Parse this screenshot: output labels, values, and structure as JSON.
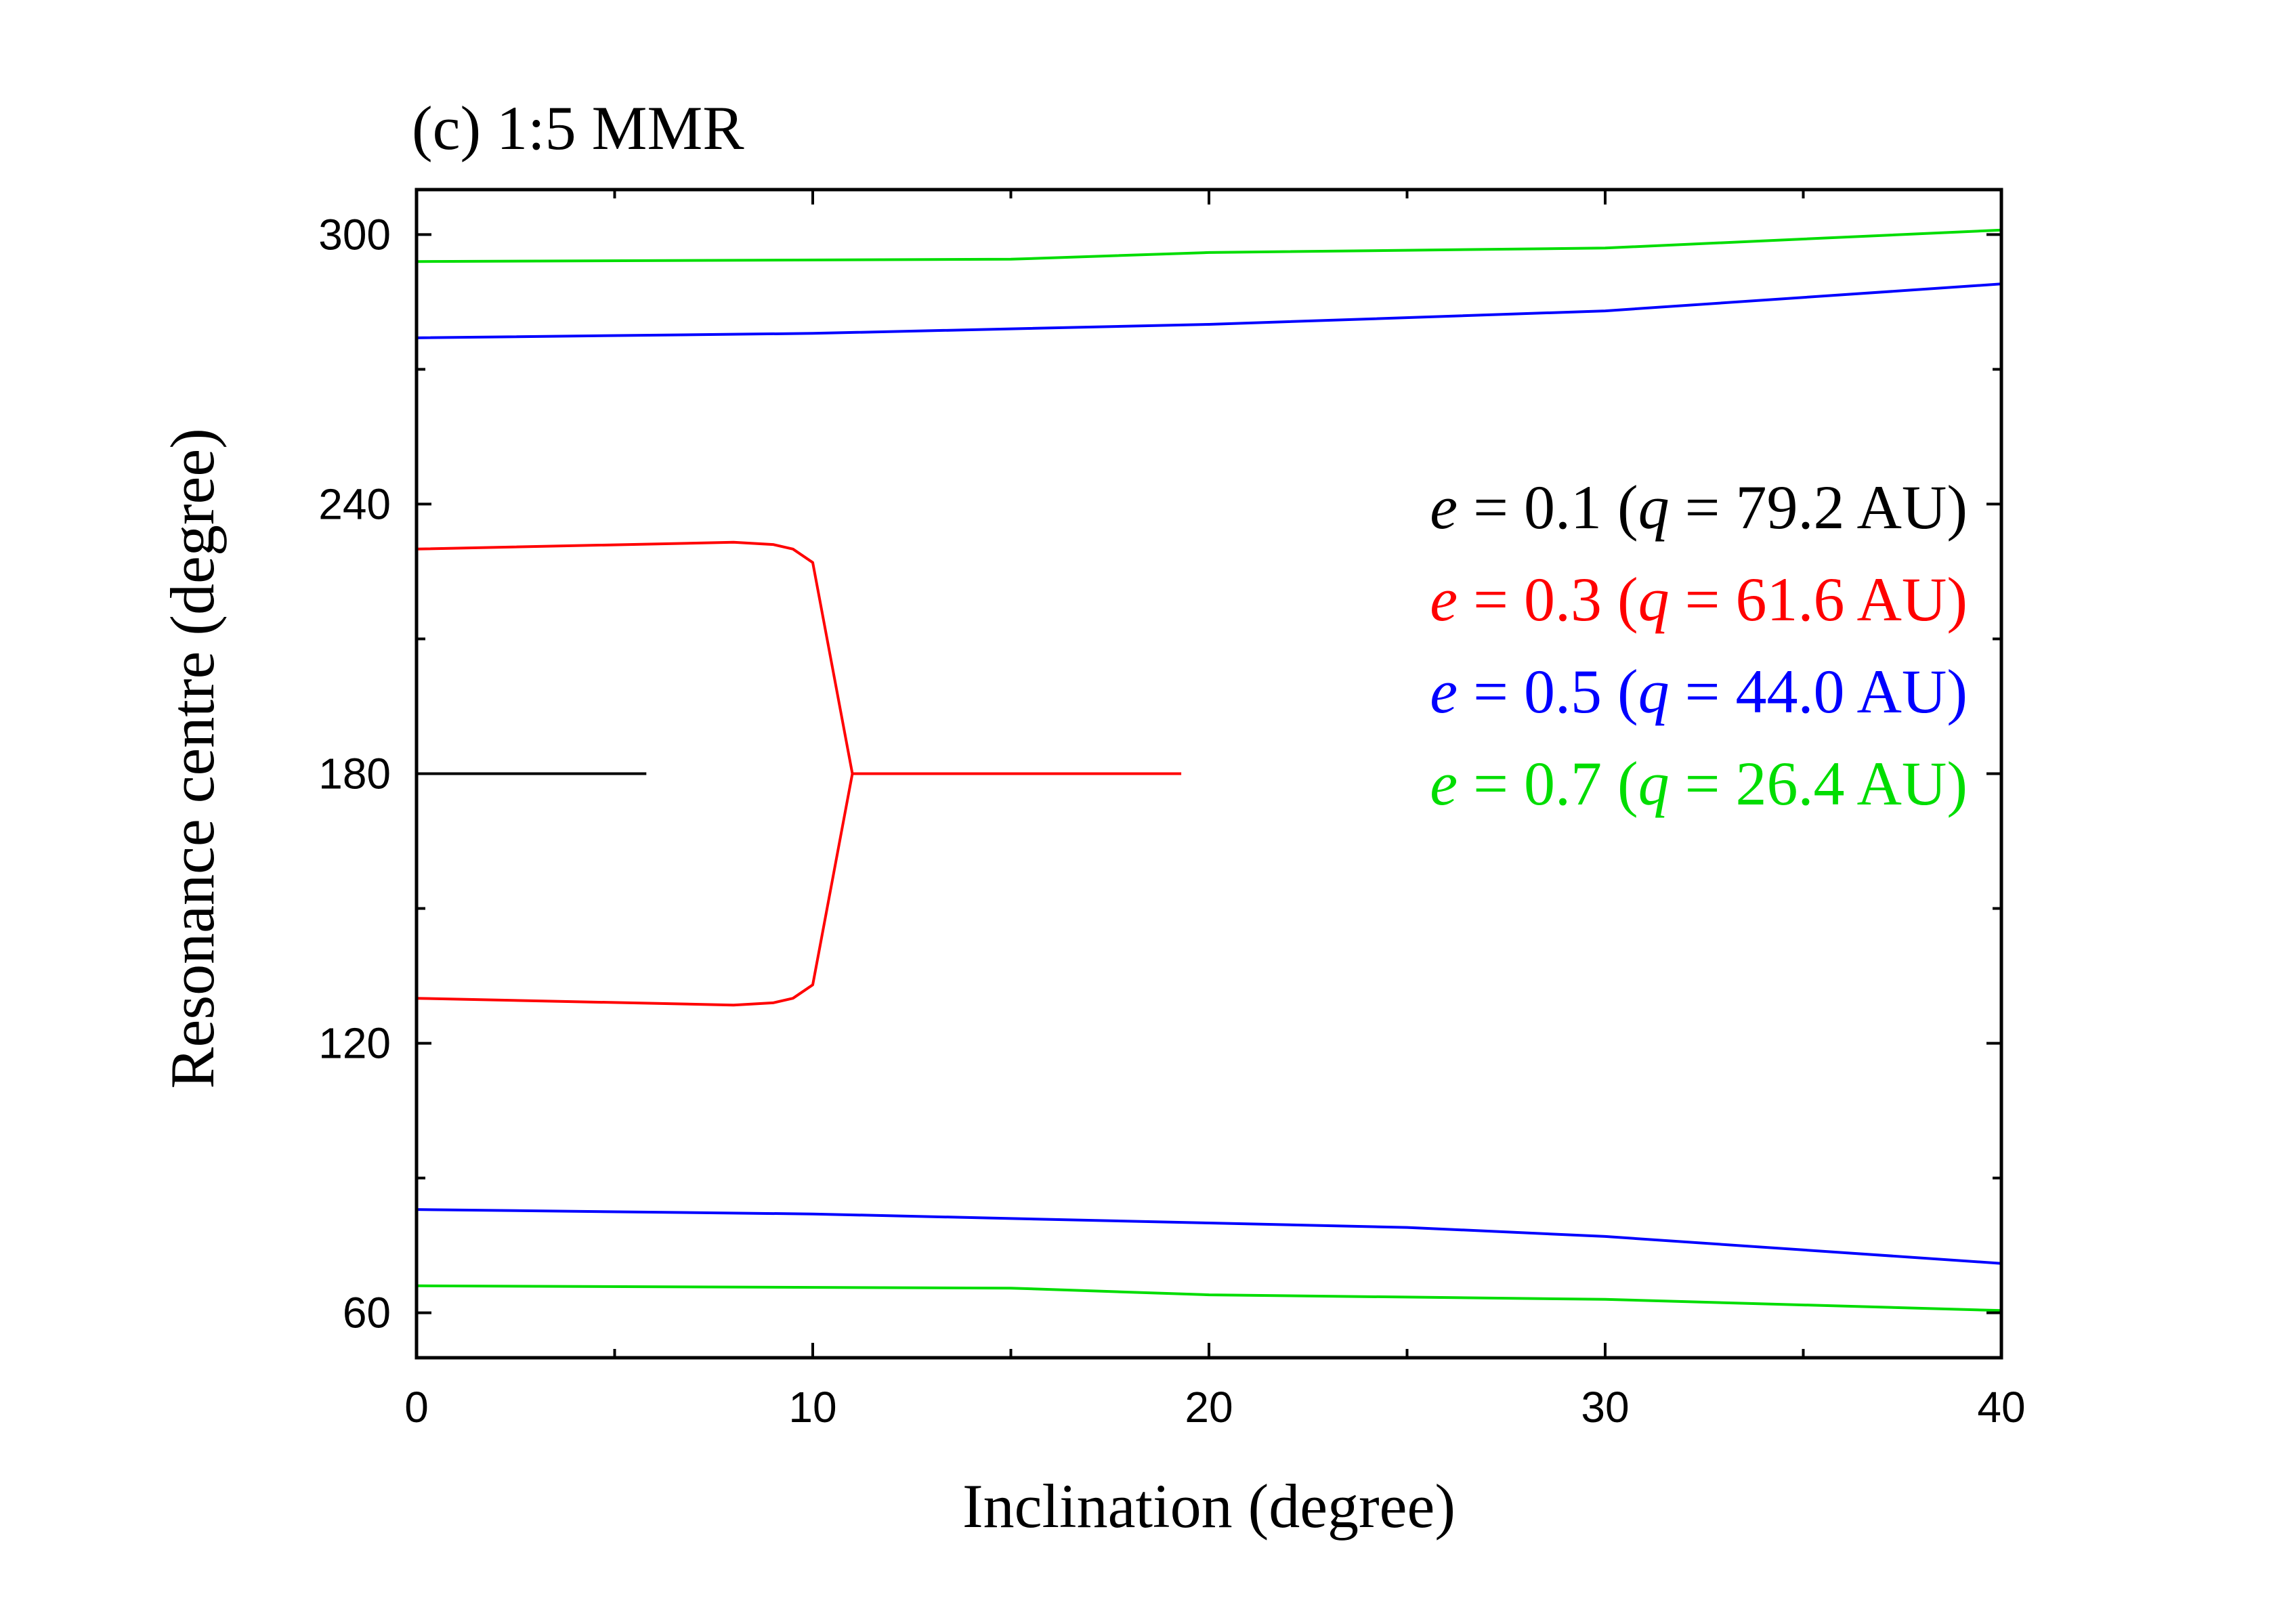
{
  "chart_data": {
    "type": "line",
    "title": "(c) 1:5 MMR",
    "xlabel": "Inclination (degree)",
    "ylabel": "Resonance centre (degree)",
    "xlim": [
      0,
      40
    ],
    "ylim": [
      50,
      310
    ],
    "x_ticks": [
      0,
      10,
      20,
      30,
      40
    ],
    "x_tick_labels": [
      "0",
      "10",
      "20",
      "30",
      "40"
    ],
    "y_ticks": [
      60,
      120,
      180,
      240,
      300
    ],
    "y_tick_labels": [
      "60",
      "120",
      "180",
      "240",
      "300"
    ],
    "legend_position": "right",
    "legend": [
      {
        "e": "e",
        "eq": " = ",
        "val": "0.1 (",
        "q": "q",
        "rest": " = 79.2 AU)",
        "color": "#000000"
      },
      {
        "e": "e",
        "eq": " = ",
        "val": "0.3 (",
        "q": "q",
        "rest": " = 61.6 AU)",
        "color": "#ff0000"
      },
      {
        "e": "e",
        "eq": " = ",
        "val": "0.5 (",
        "q": "q",
        "rest": " = 44.0 AU)",
        "color": "#0000ff"
      },
      {
        "e": "e",
        "eq": " = ",
        "val": "0.7 (",
        "q": "q",
        "rest": " = 26.4 AU)",
        "color": "#00dd00"
      }
    ],
    "series": [
      {
        "name": "e=0.1",
        "color": "#000000",
        "x": [
          0,
          5.8
        ],
        "y": [
          180,
          180
        ]
      },
      {
        "name": "e=0.3 upper",
        "color": "#ff0000",
        "x": [
          0,
          8,
          9,
          9.5,
          10,
          11,
          19.3
        ],
        "y": [
          230,
          231.5,
          231,
          230,
          227,
          180,
          180
        ]
      },
      {
        "name": "e=0.3 lower",
        "color": "#ff0000",
        "x": [
          0,
          8,
          9,
          9.5,
          10,
          11
        ],
        "y": [
          130,
          128.5,
          129,
          130,
          133,
          180
        ]
      },
      {
        "name": "e=0.5 upper",
        "color": "#0000ff",
        "x": [
          0,
          10,
          20,
          30,
          35,
          40
        ],
        "y": [
          277,
          278,
          280,
          283,
          286,
          289
        ]
      },
      {
        "name": "e=0.5 lower",
        "color": "#0000ff",
        "x": [
          0,
          10,
          20,
          25,
          30,
          40
        ],
        "y": [
          83,
          82,
          80,
          79,
          77,
          71
        ]
      },
      {
        "name": "e=0.7 upper",
        "color": "#00dd00",
        "x": [
          0,
          15,
          20,
          30,
          40
        ],
        "y": [
          294,
          294.5,
          296,
          297,
          301
        ]
      },
      {
        "name": "e=0.7 lower",
        "color": "#00dd00",
        "x": [
          0,
          15,
          20,
          30,
          40
        ],
        "y": [
          66,
          65.5,
          64,
          63,
          60.5
        ]
      }
    ]
  }
}
